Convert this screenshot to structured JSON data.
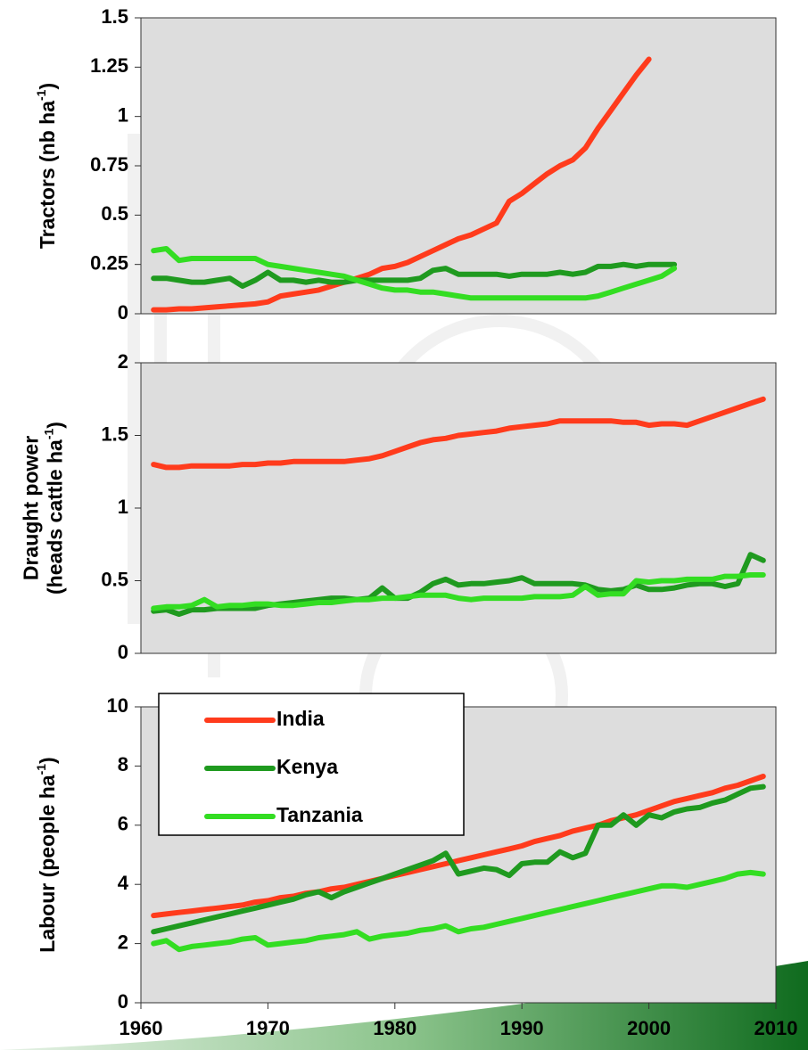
{
  "chart_data": [
    {
      "type": "line",
      "ylabel_lines": [
        [
          "Tractors (nb ha",
          "-1",
          ")"
        ]
      ],
      "x": [
        1961,
        1962,
        1963,
        1964,
        1965,
        1966,
        1967,
        1968,
        1969,
        1970,
        1971,
        1972,
        1973,
        1974,
        1975,
        1976,
        1977,
        1978,
        1979,
        1980,
        1981,
        1982,
        1983,
        1984,
        1985,
        1986,
        1987,
        1988,
        1989,
        1990,
        1991,
        1992,
        1993,
        1994,
        1995,
        1996,
        1997,
        1998,
        1999,
        2000,
        2001,
        2002,
        2003,
        2004,
        2005,
        2006,
        2007,
        2008,
        2009
      ],
      "xlim": [
        1960,
        2010
      ],
      "ylim": [
        0,
        1.5
      ],
      "yticks": [
        0,
        0.25,
        0.5,
        0.75,
        1,
        1.25,
        1.5
      ],
      "series": [
        {
          "color": "#ff3b1c",
          "values": [
            0.02,
            0.02,
            0.025,
            0.025,
            0.03,
            0.035,
            0.04,
            0.045,
            0.05,
            0.06,
            0.09,
            0.1,
            0.11,
            0.12,
            0.14,
            0.16,
            0.18,
            0.2,
            0.23,
            0.24,
            0.26,
            0.29,
            0.32,
            0.35,
            0.38,
            0.4,
            0.43,
            0.46,
            0.57,
            0.61,
            0.66,
            0.71,
            0.75,
            0.78,
            0.84,
            0.94,
            1.03,
            1.12,
            1.21,
            1.29,
            null,
            null,
            null,
            null,
            null,
            null,
            null,
            null,
            null
          ]
        },
        {
          "color": "#1f9a1f",
          "values": [
            0.18,
            0.18,
            0.17,
            0.16,
            0.16,
            0.17,
            0.18,
            0.14,
            0.17,
            0.21,
            0.17,
            0.17,
            0.16,
            0.17,
            0.16,
            0.16,
            0.17,
            0.17,
            0.17,
            0.17,
            0.17,
            0.18,
            0.22,
            0.23,
            0.2,
            0.2,
            0.2,
            0.2,
            0.19,
            0.2,
            0.2,
            0.2,
            0.21,
            0.2,
            0.21,
            0.24,
            0.24,
            0.25,
            0.24,
            0.25,
            0.25,
            0.25,
            null,
            null,
            null,
            null,
            null,
            null,
            null
          ]
        },
        {
          "color": "#33dd22",
          "values": [
            0.32,
            0.33,
            0.27,
            0.28,
            0.28,
            0.28,
            0.28,
            0.28,
            0.28,
            0.25,
            0.24,
            0.23,
            0.22,
            0.21,
            0.2,
            0.19,
            0.17,
            0.15,
            0.13,
            0.12,
            0.12,
            0.11,
            0.11,
            0.1,
            0.09,
            0.08,
            0.08,
            0.08,
            0.08,
            0.08,
            0.08,
            0.08,
            0.08,
            0.08,
            0.08,
            0.09,
            0.11,
            0.13,
            0.15,
            0.17,
            0.19,
            0.23,
            null,
            null,
            null,
            null,
            null,
            null,
            null
          ]
        }
      ]
    },
    {
      "type": "line",
      "ylabel_lines": [
        [
          "Draught power"
        ],
        [
          "(heads cattle ha",
          "-1",
          ")"
        ]
      ],
      "x": [
        1961,
        1962,
        1963,
        1964,
        1965,
        1966,
        1967,
        1968,
        1969,
        1970,
        1971,
        1972,
        1973,
        1974,
        1975,
        1976,
        1977,
        1978,
        1979,
        1980,
        1981,
        1982,
        1983,
        1984,
        1985,
        1986,
        1987,
        1988,
        1989,
        1990,
        1991,
        1992,
        1993,
        1994,
        1995,
        1996,
        1997,
        1998,
        1999,
        2000,
        2001,
        2002,
        2003,
        2004,
        2005,
        2006,
        2007,
        2008,
        2009
      ],
      "xlim": [
        1960,
        2010
      ],
      "ylim": [
        0,
        2
      ],
      "yticks": [
        0,
        0.5,
        1,
        1.5,
        2
      ],
      "series": [
        {
          "color": "#ff3b1c",
          "values": [
            1.3,
            1.28,
            1.28,
            1.29,
            1.29,
            1.29,
            1.29,
            1.3,
            1.3,
            1.31,
            1.31,
            1.32,
            1.32,
            1.32,
            1.32,
            1.32,
            1.33,
            1.34,
            1.36,
            1.39,
            1.42,
            1.45,
            1.47,
            1.48,
            1.5,
            1.51,
            1.52,
            1.53,
            1.55,
            1.56,
            1.57,
            1.58,
            1.6,
            1.6,
            1.6,
            1.6,
            1.6,
            1.59,
            1.59,
            1.57,
            1.58,
            1.58,
            1.57,
            1.6,
            1.63,
            1.66,
            1.69,
            1.72,
            1.75
          ]
        },
        {
          "color": "#1f9a1f",
          "values": [
            0.29,
            0.3,
            0.27,
            0.3,
            0.3,
            0.31,
            0.31,
            0.31,
            0.31,
            0.33,
            0.34,
            0.35,
            0.36,
            0.37,
            0.38,
            0.38,
            0.37,
            0.38,
            0.45,
            0.38,
            0.38,
            0.42,
            0.48,
            0.51,
            0.47,
            0.48,
            0.48,
            0.49,
            0.5,
            0.52,
            0.48,
            0.48,
            0.48,
            0.48,
            0.47,
            0.44,
            0.43,
            0.44,
            0.47,
            0.44,
            0.44,
            0.45,
            0.47,
            0.48,
            0.48,
            0.46,
            0.48,
            0.68,
            0.64
          ]
        },
        {
          "color": "#33dd22",
          "values": [
            0.31,
            0.32,
            0.32,
            0.33,
            0.37,
            0.32,
            0.33,
            0.33,
            0.34,
            0.34,
            0.33,
            0.33,
            0.34,
            0.35,
            0.35,
            0.36,
            0.37,
            0.37,
            0.38,
            0.38,
            0.39,
            0.4,
            0.4,
            0.4,
            0.38,
            0.37,
            0.38,
            0.38,
            0.38,
            0.38,
            0.39,
            0.39,
            0.39,
            0.4,
            0.46,
            0.4,
            0.41,
            0.41,
            0.5,
            0.49,
            0.5,
            0.5,
            0.51,
            0.51,
            0.51,
            0.53,
            0.53,
            0.54,
            0.54
          ]
        }
      ]
    },
    {
      "type": "line",
      "ylabel_lines": [
        [
          "Labour (people ha",
          "-1",
          ")"
        ]
      ],
      "x": [
        1961,
        1962,
        1963,
        1964,
        1965,
        1966,
        1967,
        1968,
        1969,
        1970,
        1971,
        1972,
        1973,
        1974,
        1975,
        1976,
        1977,
        1978,
        1979,
        1980,
        1981,
        1982,
        1983,
        1984,
        1985,
        1986,
        1987,
        1988,
        1989,
        1990,
        1991,
        1992,
        1993,
        1994,
        1995,
        1996,
        1997,
        1998,
        1999,
        2000,
        2001,
        2002,
        2003,
        2004,
        2005,
        2006,
        2007,
        2008,
        2009
      ],
      "xlim": [
        1960,
        2010
      ],
      "xticks": [
        1960,
        1970,
        1980,
        1990,
        2000,
        2010
      ],
      "ylim": [
        0,
        10
      ],
      "yticks": [
        0,
        2,
        4,
        6,
        8,
        10
      ],
      "legend": "upper left",
      "series": [
        {
          "name": "India",
          "color": "#ff3b1c",
          "values": [
            2.95,
            3.0,
            3.05,
            3.1,
            3.15,
            3.2,
            3.25,
            3.3,
            3.4,
            3.45,
            3.55,
            3.6,
            3.7,
            3.75,
            3.85,
            3.9,
            4.0,
            4.1,
            4.2,
            4.3,
            4.4,
            4.5,
            4.6,
            4.7,
            4.8,
            4.9,
            5.0,
            5.1,
            5.2,
            5.3,
            5.45,
            5.55,
            5.65,
            5.8,
            5.9,
            6.0,
            6.15,
            6.25,
            6.35,
            6.5,
            6.65,
            6.8,
            6.9,
            7.0,
            7.1,
            7.25,
            7.35,
            7.5,
            7.65
          ]
        },
        {
          "name": "Kenya",
          "color": "#1f9a1f",
          "values": [
            2.4,
            2.5,
            2.6,
            2.7,
            2.8,
            2.9,
            3.0,
            3.1,
            3.2,
            3.3,
            3.4,
            3.5,
            3.65,
            3.75,
            3.55,
            3.75,
            3.9,
            4.05,
            4.2,
            4.35,
            4.5,
            4.65,
            4.8,
            5.05,
            4.35,
            4.45,
            4.55,
            4.5,
            4.3,
            4.7,
            4.75,
            4.75,
            5.1,
            4.9,
            5.05,
            6.0,
            6.0,
            6.35,
            6.0,
            6.35,
            6.25,
            6.45,
            6.55,
            6.6,
            6.75,
            6.85,
            7.05,
            7.25,
            7.3
          ]
        },
        {
          "name": "Tanzania",
          "color": "#33dd22",
          "values": [
            2.0,
            2.1,
            1.8,
            1.9,
            1.95,
            2.0,
            2.05,
            2.15,
            2.2,
            1.95,
            2.0,
            2.05,
            2.1,
            2.2,
            2.25,
            2.3,
            2.4,
            2.15,
            2.25,
            2.3,
            2.35,
            2.45,
            2.5,
            2.6,
            2.4,
            2.5,
            2.55,
            2.65,
            2.75,
            2.85,
            2.95,
            3.05,
            3.15,
            3.25,
            3.35,
            3.45,
            3.55,
            3.65,
            3.75,
            3.85,
            3.95,
            3.95,
            3.9,
            4.0,
            4.1,
            4.2,
            4.35,
            4.4,
            4.35
          ]
        }
      ]
    }
  ]
}
